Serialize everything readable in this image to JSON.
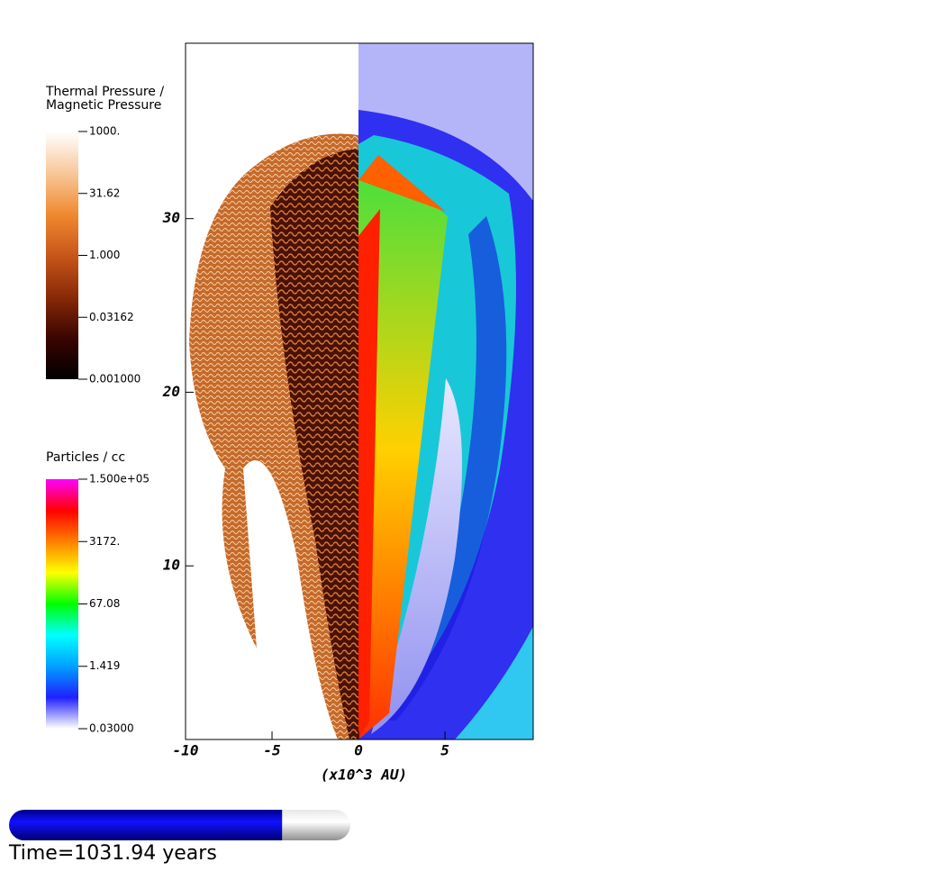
{
  "chart_data": {
    "type": "field",
    "x_label": "(x10^3 AU)",
    "xlim": [
      -10,
      10.1
    ],
    "ylim": [
      0,
      40.1
    ],
    "xticks": [
      -10,
      -5,
      0,
      5
    ],
    "yticks": [
      10,
      20,
      30
    ],
    "colorbars": [
      {
        "title_lines": [
          "Thermal Pressure /",
          "Magnetic Pressure"
        ],
        "scale": "log",
        "lim": [
          0.001,
          1000
        ],
        "ticks": [
          {
            "value": 1000,
            "label": "1000."
          },
          31.62,
          {
            "value": 1,
            "label": "1.000"
          },
          0.03162,
          {
            "value": 0.001,
            "label": "0.001000"
          }
        ],
        "colors": [
          "#000000",
          "#3a0500",
          "#8a2a08",
          "#c8561a",
          "#f08a30",
          "#f8c89a",
          "#ffffff"
        ]
      },
      {
        "title_lines": [
          "Particles / cc"
        ],
        "scale": "log",
        "lim": [
          0.03,
          150000
        ],
        "ticks": [
          {
            "value": 150000,
            "label": "1.500e+05"
          },
          {
            "value": 3172,
            "label": "3172."
          },
          67.08,
          1.419,
          {
            "value": 0.03,
            "label": "0.03000"
          }
        ],
        "colors": [
          "#ffffff",
          "#2020ff",
          "#00a0ff",
          "#00ffff",
          "#00ff00",
          "#ffff00",
          "#ff8000",
          "#ff0000",
          "#ff00ff"
        ]
      }
    ],
    "progress": {
      "value": 0.8,
      "lim": [
        0,
        1
      ],
      "color": "#0000e0"
    },
    "time_label": "Time=1031.94 years"
  }
}
